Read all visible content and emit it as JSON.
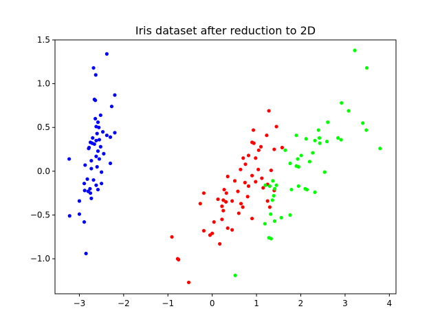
{
  "chart_data": {
    "type": "scatter",
    "title": "Iris dataset after reduction to 2D",
    "xlabel": "",
    "ylabel": "",
    "xlim": [
      -3.55,
      4.15
    ],
    "ylim": [
      -1.4,
      1.5
    ],
    "x_ticks": [
      -3,
      -2,
      -1,
      0,
      1,
      2,
      3,
      4
    ],
    "x_tick_labels": [
      "−3",
      "−2",
      "−1",
      "0",
      "1",
      "2",
      "3",
      "4"
    ],
    "y_ticks": [
      -1.0,
      -0.5,
      0.0,
      0.5,
      1.0,
      1.5
    ],
    "y_tick_labels": [
      "−1.0",
      "−0.5",
      "0.0",
      "0.5",
      "1.0",
      "1.5"
    ],
    "grid": false,
    "series": [
      {
        "color": "#0000ff",
        "points": [
          [
            -2.38,
            1.34
          ],
          [
            -2.68,
            1.18
          ],
          [
            -2.63,
            1.1
          ],
          [
            -2.2,
            0.87
          ],
          [
            -2.66,
            0.82
          ],
          [
            -2.64,
            0.81
          ],
          [
            -2.27,
            0.74
          ],
          [
            -2.52,
            0.64
          ],
          [
            -2.64,
            0.6
          ],
          [
            -2.58,
            0.56
          ],
          [
            -2.62,
            0.51
          ],
          [
            -2.56,
            0.5
          ],
          [
            -2.47,
            0.45
          ],
          [
            -2.2,
            0.44
          ],
          [
            -2.6,
            0.43
          ],
          [
            -2.38,
            0.41
          ],
          [
            -2.3,
            0.39
          ],
          [
            -2.7,
            0.38
          ],
          [
            -2.55,
            0.36
          ],
          [
            -2.62,
            0.35
          ],
          [
            -2.75,
            0.33
          ],
          [
            -2.71,
            0.32
          ],
          [
            -2.66,
            0.31
          ],
          [
            -2.52,
            0.28
          ],
          [
            -2.78,
            0.27
          ],
          [
            -2.79,
            0.26
          ],
          [
            -2.58,
            0.23
          ],
          [
            -2.45,
            0.2
          ],
          [
            -2.62,
            0.17
          ],
          [
            -2.55,
            0.14
          ],
          [
            -3.23,
            0.14
          ],
          [
            -2.73,
            0.12
          ],
          [
            -2.3,
            0.09
          ],
          [
            -2.87,
            0.07
          ],
          [
            -2.6,
            0.05
          ],
          [
            -2.73,
            0.03
          ],
          [
            -2.5,
            -0.01
          ],
          [
            -2.82,
            -0.09
          ],
          [
            -2.68,
            -0.1
          ],
          [
            -2.89,
            -0.14
          ],
          [
            -2.5,
            -0.14
          ],
          [
            -2.62,
            -0.16
          ],
          [
            -2.76,
            -0.2
          ],
          [
            -2.58,
            -0.21
          ],
          [
            -2.88,
            -0.22
          ],
          [
            -2.8,
            -0.23
          ],
          [
            -2.75,
            -0.25
          ],
          [
            -2.73,
            -0.31
          ],
          [
            -3.0,
            -0.34
          ],
          [
            -3.22,
            -0.51
          ],
          [
            -3.0,
            -0.49
          ],
          [
            -2.89,
            -0.58
          ],
          [
            -2.85,
            -0.94
          ]
        ]
      },
      {
        "color": "#ff0000",
        "points": [
          [
            1.28,
            0.69
          ],
          [
            1.45,
            0.51
          ],
          [
            0.93,
            0.47
          ],
          [
            1.58,
            0.27
          ],
          [
            1.23,
            0.41
          ],
          [
            1.1,
            0.28
          ],
          [
            1.4,
            0.25
          ],
          [
            1.05,
            0.24
          ],
          [
            0.9,
            0.33
          ],
          [
            0.94,
            0.32
          ],
          [
            0.82,
            0.18
          ],
          [
            0.98,
            0.15
          ],
          [
            0.7,
            0.15
          ],
          [
            0.75,
            0.08
          ],
          [
            0.64,
            0.02
          ],
          [
            1.04,
            0.02
          ],
          [
            1.33,
            0.01
          ],
          [
            1.12,
            -0.08
          ],
          [
            0.9,
            -0.05
          ],
          [
            0.98,
            -0.12
          ],
          [
            0.35,
            -0.06
          ],
          [
            0.51,
            -0.11
          ],
          [
            0.74,
            -0.13
          ],
          [
            0.82,
            -0.17
          ],
          [
            1.15,
            -0.19
          ],
          [
            1.25,
            -0.15
          ],
          [
            1.4,
            -0.22
          ],
          [
            0.27,
            -0.21
          ],
          [
            0.58,
            -0.23
          ],
          [
            0.8,
            -0.29
          ],
          [
            0.32,
            -0.25
          ],
          [
            0.13,
            -0.32
          ],
          [
            -0.19,
            -0.25
          ],
          [
            0.25,
            -0.33
          ],
          [
            0.31,
            -0.35
          ],
          [
            0.45,
            -0.34
          ],
          [
            0.65,
            -0.37
          ],
          [
            0.69,
            -0.41
          ],
          [
            1.25,
            -0.34
          ],
          [
            1.3,
            -0.41
          ],
          [
            0.22,
            -0.4
          ],
          [
            0.25,
            -0.45
          ],
          [
            -0.27,
            -0.37
          ],
          [
            0.6,
            -0.48
          ],
          [
            0.9,
            -0.54
          ],
          [
            0.04,
            -0.58
          ],
          [
            0.22,
            -0.55
          ],
          [
            0.35,
            -0.65
          ],
          [
            0.45,
            -0.67
          ],
          [
            -0.19,
            -0.68
          ],
          [
            0.0,
            -0.71
          ],
          [
            -0.05,
            -0.73
          ],
          [
            0.17,
            -0.83
          ],
          [
            -0.91,
            -0.75
          ],
          [
            -0.78,
            -1.0
          ],
          [
            -0.76,
            -1.01
          ],
          [
            -0.53,
            -1.27
          ]
        ]
      },
      {
        "color": "#00ff00",
        "points": [
          [
            3.22,
            1.38
          ],
          [
            3.49,
            1.18
          ],
          [
            2.92,
            0.78
          ],
          [
            3.08,
            0.69
          ],
          [
            2.61,
            0.56
          ],
          [
            3.4,
            0.55
          ],
          [
            2.4,
            0.47
          ],
          [
            3.48,
            0.47
          ],
          [
            1.9,
            0.41
          ],
          [
            2.42,
            0.38
          ],
          [
            2.12,
            0.37
          ],
          [
            2.32,
            0.35
          ],
          [
            2.84,
            0.38
          ],
          [
            2.91,
            0.36
          ],
          [
            2.59,
            0.34
          ],
          [
            2.43,
            0.32
          ],
          [
            1.65,
            0.24
          ],
          [
            3.79,
            0.26
          ],
          [
            2.27,
            0.21
          ],
          [
            2.01,
            0.18
          ],
          [
            1.93,
            0.14
          ],
          [
            2.2,
            0.11
          ],
          [
            1.76,
            0.09
          ],
          [
            1.9,
            0.06
          ],
          [
            1.95,
            0.05
          ],
          [
            2.54,
            -0.01
          ],
          [
            1.37,
            -0.11
          ],
          [
            1.2,
            -0.16
          ],
          [
            1.3,
            -0.17
          ],
          [
            1.45,
            -0.16
          ],
          [
            1.95,
            -0.17
          ],
          [
            1.41,
            -0.2
          ],
          [
            1.79,
            -0.21
          ],
          [
            2.1,
            -0.2
          ],
          [
            2.14,
            -0.21
          ],
          [
            2.32,
            -0.24
          ],
          [
            1.39,
            -0.28
          ],
          [
            1.36,
            -0.33
          ],
          [
            1.32,
            -0.49
          ],
          [
            1.56,
            -0.53
          ],
          [
            1.76,
            -0.5
          ],
          [
            1.41,
            -0.57
          ],
          [
            1.19,
            -0.6
          ],
          [
            1.28,
            -0.76
          ],
          [
            1.33,
            -0.77
          ],
          [
            0.52,
            -1.19
          ]
        ]
      }
    ]
  }
}
